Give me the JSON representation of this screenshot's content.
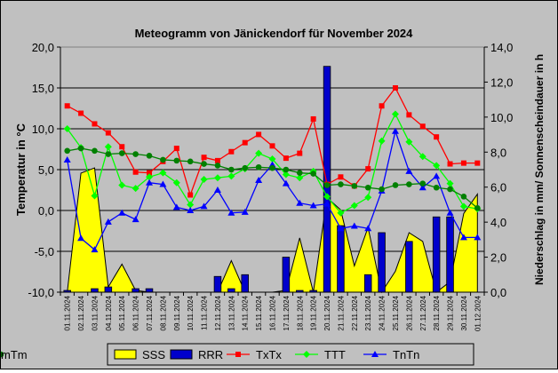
{
  "chart_data": {
    "type": "combo",
    "title": "Meteogramm von Jänickendorf für November 2024",
    "y_left_label": "Temperatur in °C",
    "y_right_label": "Niederschlag in mm/ Sonnenscheindauer in h",
    "y_left_range": [
      -10,
      20
    ],
    "y_right_range": [
      0,
      14
    ],
    "y_left_ticks": [
      "-10,0",
      "-5,0",
      "0,0",
      "5,0",
      "10,0",
      "15,0",
      "20,0"
    ],
    "y_right_ticks": [
      "0,0",
      "2,0",
      "4,0",
      "6,0",
      "8,0",
      "10,0",
      "12,0",
      "14,0"
    ],
    "grid": true,
    "legend_position": "bottom",
    "categories": [
      "01.11.2024",
      "02.11.2024",
      "03.11.2024",
      "04.11.2024",
      "05.11.2024",
      "06.11.2024",
      "07.11.2024",
      "08.11.2024",
      "09.11.2024",
      "10.11.2024",
      "11.11.2024",
      "12.11.2024",
      "13.11.2024",
      "14.11.2024",
      "15.11.2024",
      "16.11.2024",
      "17.11.2024",
      "18.11.2024",
      "19.11.2024",
      "20.11.2024",
      "21.11.2024",
      "22.11.2024",
      "23.11.2024",
      "24.11.2024",
      "25.11.2024",
      "26.11.2024",
      "27.11.2024",
      "28.11.2024",
      "29.11.2024",
      "30.11.2024",
      "01.12.2024"
    ],
    "series": [
      {
        "name": "SSS",
        "kind": "area",
        "axis": "right",
        "color": "#ffff00",
        "values": [
          0,
          6.8,
          7.1,
          0.3,
          1.6,
          0.1,
          0,
          0,
          0,
          0,
          0,
          0,
          1.8,
          0,
          0,
          0,
          0.1,
          3.1,
          0,
          5.4,
          4.7,
          1.5,
          3.7,
          0,
          1.2,
          3.4,
          2.9,
          0,
          0.6,
          4.5,
          5.6
        ]
      },
      {
        "name": "RRR",
        "kind": "bar",
        "axis": "right",
        "color": "#0000cc",
        "values": [
          0.1,
          0,
          0.2,
          0.3,
          0,
          0.2,
          0.2,
          0,
          0,
          0,
          0,
          0.9,
          0.2,
          1.0,
          0,
          0,
          2.0,
          0.1,
          0.1,
          12.9,
          3.8,
          0,
          1.0,
          3.4,
          0,
          2.9,
          0,
          4.3,
          4.3,
          0,
          0
        ]
      },
      {
        "name": "TxTx",
        "kind": "line",
        "axis": "left",
        "color": "#ff0000",
        "marker": "square",
        "values": [
          12.8,
          11.9,
          10.6,
          9.5,
          7.8,
          4.7,
          4.6,
          6.0,
          7.6,
          1.9,
          6.5,
          6.1,
          7.2,
          8.3,
          9.3,
          7.9,
          6.4,
          7.0,
          11.2,
          3.2,
          4.1,
          3.0,
          5.1,
          12.8,
          15.0,
          11.7,
          10.3,
          9.0,
          5.7,
          5.8,
          5.8
        ]
      },
      {
        "name": "TTT",
        "kind": "line",
        "axis": "left",
        "color": "#00ff00",
        "marker": "diamond",
        "values": [
          10.0,
          7.7,
          1.8,
          7.8,
          3.1,
          2.7,
          4.1,
          4.6,
          3.4,
          0.7,
          3.8,
          4.0,
          4.2,
          5.1,
          7.0,
          6.3,
          4.4,
          4.0,
          4.8,
          1.7,
          -0.3,
          0.6,
          1.6,
          8.5,
          11.8,
          8.4,
          6.6,
          5.5,
          3.3,
          0.5,
          0.2
        ]
      },
      {
        "name": "TnTn",
        "kind": "line",
        "axis": "left",
        "color": "#0000ff",
        "marker": "triangle",
        "values": [
          6.2,
          -3.4,
          -4.8,
          -1.4,
          -0.3,
          -1.1,
          3.4,
          3.2,
          0.4,
          0.0,
          0.5,
          2.5,
          -0.3,
          -0.2,
          3.7,
          5.6,
          3.3,
          0.9,
          0.6,
          0.8,
          -2.2,
          -1.9,
          -2.2,
          2.4,
          9.7,
          4.8,
          2.8,
          4.2,
          -0.3,
          -3.3,
          -3.3
        ]
      },
      {
        "name": "mTm",
        "kind": "line",
        "axis": "left",
        "color": "#008000",
        "marker": "circle",
        "values": [
          7.3,
          7.6,
          7.3,
          6.9,
          7.0,
          6.9,
          6.7,
          6.2,
          6.1,
          6.0,
          5.7,
          5.5,
          5.0,
          5.2,
          5.3,
          5.2,
          5.0,
          4.6,
          4.5,
          3.1,
          3.2,
          3.0,
          2.8,
          2.6,
          3.1,
          3.2,
          3.3,
          2.8,
          2.6,
          1.7,
          0.3
        ]
      }
    ]
  }
}
